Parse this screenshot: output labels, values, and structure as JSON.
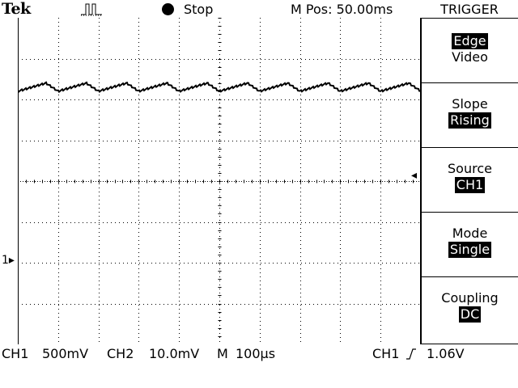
{
  "header": {
    "brand": "Tek",
    "acq_icon": "pulse-icon",
    "run_state": "Stop",
    "main_position": "M Pos: 50.00ms",
    "menu_title": "TRIGGER"
  },
  "trigger_menu": {
    "items": [
      {
        "title": "",
        "options": [
          "Edge",
          "Video"
        ],
        "selected": "Edge"
      },
      {
        "title": "Slope",
        "value": "Rising"
      },
      {
        "title": "Source",
        "value": "CH1"
      },
      {
        "title": "Mode",
        "value": "Single"
      },
      {
        "title": "Coupling",
        "value": "DC"
      }
    ]
  },
  "markers": {
    "ch1_ground": "1",
    "ch1_ground_arrow": "▸",
    "trigger_level_arrow": "◂"
  },
  "status": {
    "ch1_label": "CH1",
    "ch1_scale": "500mV",
    "ch2_label": "CH2",
    "ch2_scale": "10.0mV",
    "timebase_label": "M",
    "timebase": "100µs",
    "trigger_source": "CH1",
    "trigger_slope_icon": "rising-edge-icon",
    "trigger_level": "1.06V"
  },
  "display": {
    "grid_divisions_x": 10,
    "grid_divisions_y": 8,
    "trace_color": "#000000",
    "background": "#ffffff",
    "ch1_waveform": {
      "description_none": "",
      "offset_divisions": 2.3,
      "cycles": 10,
      "amplitude_divisions": 0.1
    }
  }
}
